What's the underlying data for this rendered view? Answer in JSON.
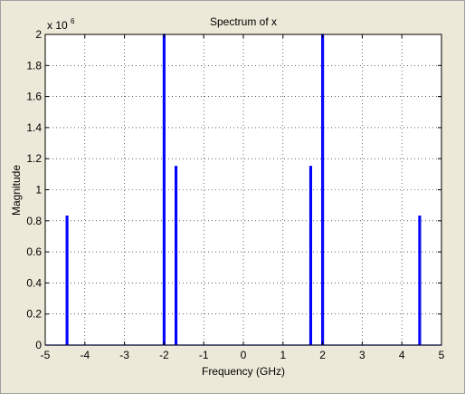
{
  "chart_data": {
    "type": "line",
    "title": "Spectrum of x",
    "xlabel": "Frequency (GHz)",
    "ylabel": "Magnitude",
    "xlim": [
      -5,
      5
    ],
    "ylim": [
      0,
      2
    ],
    "y_exponent_label": "x 10",
    "y_exponent_power": "6",
    "x_ticks": [
      -5,
      -4,
      -3,
      -2,
      -1,
      0,
      1,
      2,
      3,
      4,
      5
    ],
    "x_tick_labels": [
      "-5",
      "-4",
      "-3",
      "-2",
      "-1",
      "0",
      "1",
      "2",
      "3",
      "4",
      "5"
    ],
    "y_ticks": [
      0,
      0.2,
      0.4,
      0.6,
      0.8,
      1,
      1.2,
      1.4,
      1.6,
      1.8,
      2
    ],
    "y_tick_labels": [
      "0",
      "0.2",
      "0.4",
      "0.6",
      "0.8",
      "1",
      "1.2",
      "1.4",
      "1.6",
      "1.8",
      "2"
    ],
    "grid": true,
    "series_color": "#0000ff",
    "peaks": [
      {
        "x": -4.45,
        "y": 0.83
      },
      {
        "x": -2.0,
        "y": 2.0
      },
      {
        "x": -1.7,
        "y": 1.15
      },
      {
        "x": 1.7,
        "y": 1.15
      },
      {
        "x": 2.0,
        "y": 2.0
      },
      {
        "x": 4.45,
        "y": 0.83
      }
    ]
  }
}
